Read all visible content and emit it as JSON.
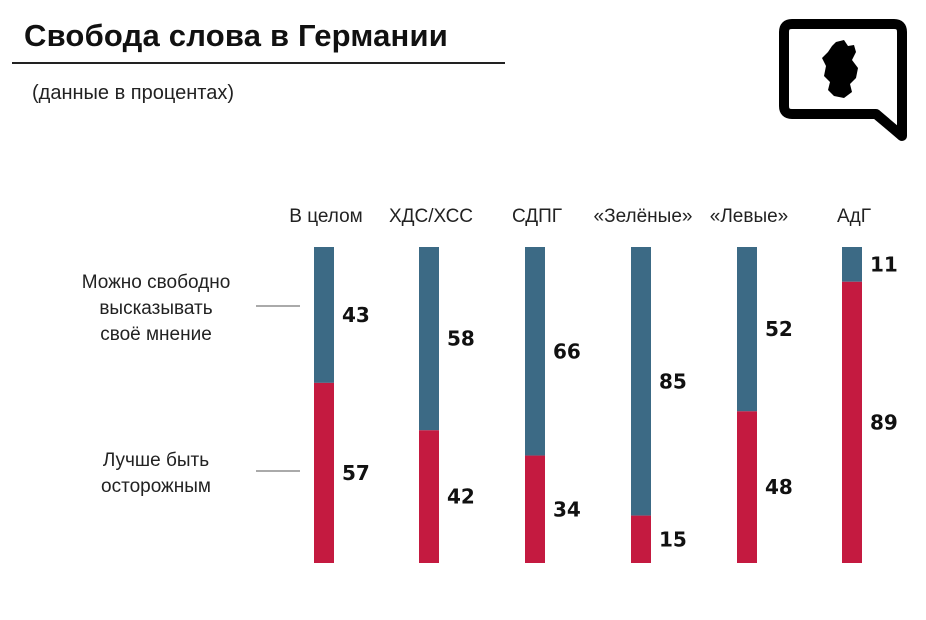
{
  "title": "Свобода слова в Германии",
  "subtitle": "(данные в процентах)",
  "logo_icon": "speech-bubble-germany-map-icon",
  "colors": {
    "top": "#3c6a85",
    "bottom": "#c41a40"
  },
  "chart_data": {
    "type": "bar",
    "stacked": true,
    "categories": [
      "В целом",
      "ХДС/ХСС",
      "СДПГ",
      "«Зелёные»",
      "«Левые»",
      "АдГ"
    ],
    "series": [
      {
        "name": "Можно свободно высказывать своё мнение",
        "values": [
          43,
          58,
          66,
          85,
          52,
          11
        ]
      },
      {
        "name": "Лучше быть осторожным",
        "values": [
          57,
          42,
          34,
          15,
          48,
          89
        ]
      }
    ],
    "ylim": [
      0,
      100
    ],
    "legend": "left"
  },
  "legend": {
    "top_lines": [
      "Можно свободно",
      "высказывать",
      "своё мнение"
    ],
    "bottom_lines": [
      "Лучше быть",
      "осторожным"
    ]
  }
}
